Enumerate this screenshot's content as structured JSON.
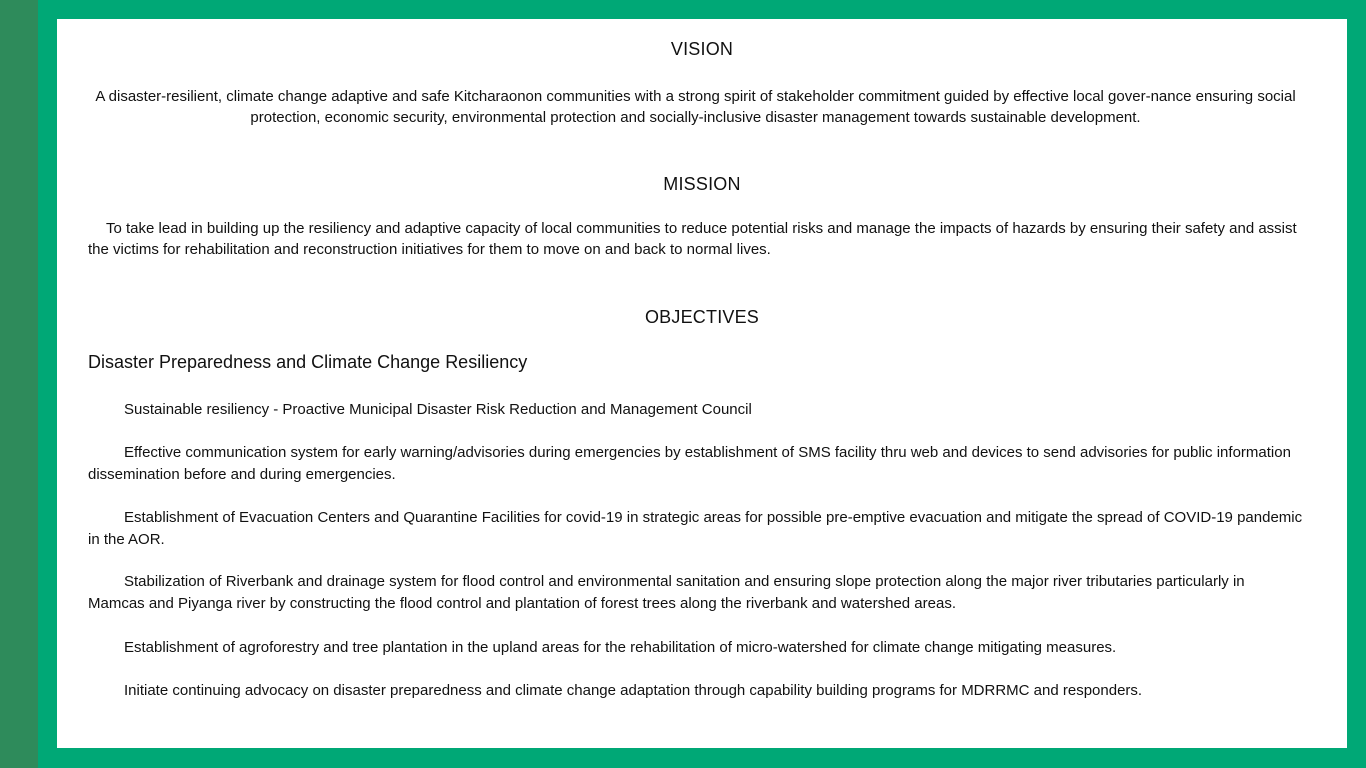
{
  "colors": {
    "frame_green": "#00a876",
    "strip_green": "#2e8b5b",
    "panel_white": "#ffffff",
    "text": "#111111"
  },
  "vision": {
    "heading": "VISION",
    "text": "A disaster-resilient, climate change adaptive and safe Kitcharaonon communities with a strong spirit of stakeholder commitment guided by effective local  gover-nance ensuring social protection, economic security, environmental protection and socially-inclusive disaster management towards sustainable development."
  },
  "mission": {
    "heading": "MISSION",
    "text": "To take lead in building up the resiliency and adaptive capacity of local communities to reduce potential risks and manage the impacts of hazards by ensuring their safety and assist the victims for rehabilitation and reconstruction initiatives  for them to move on and back to normal lives."
  },
  "objectives": {
    "heading": "OBJECTIVES",
    "subheading": "Disaster Preparedness and Climate Change Resiliency",
    "items": [
      "Sustainable resiliency - Proactive Municipal Disaster Risk Reduction and Management Council",
      "Effective communication system for early warning/advisories during emergencies by establishment of SMS facility thru web and devices to send advisories for public information dissemination before and during emergencies.",
      "Establishment of Evacuation Centers and Quarantine Facilities for covid-19  in strategic areas for possible pre-emptive evacuation and mitigate the spread of COVID-19 pandemic in the AOR.",
      "Stabilization of Riverbank and drainage system for flood control and environmental sanitation and ensuring slope protection along the major river tributaries particularly in Mamcas and Piyanga river by constructing the flood control and plantation of forest trees along the riverbank and watershed areas.",
      "Establishment of agroforestry and tree plantation in the upland areas for the rehabilitation of micro-watershed for climate change mitigating measures.",
      "Initiate continuing advocacy on disaster preparedness and climate change adaptation through capability building programs for MDRRMC and responders."
    ]
  }
}
